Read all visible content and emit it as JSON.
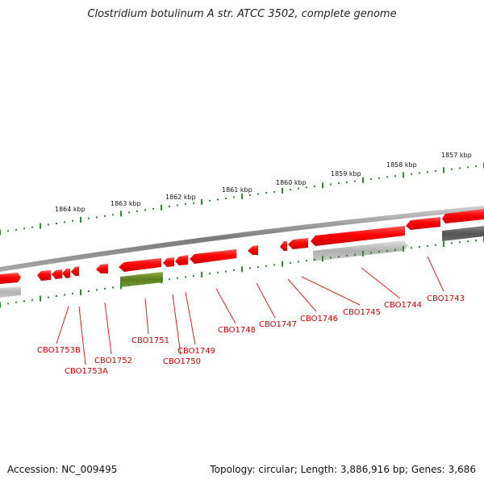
{
  "title": "Clostridium botulinum A str. ATCC 3502, complete genome",
  "footer": {
    "accession": "Accession: NC_009495",
    "topology": "Topology: circular; Length: 3,886,916 bp; Genes: 3,686"
  },
  "colors": {
    "forward_gene": "#ee1111",
    "reverse_gene_light": "#b8b8b8",
    "reverse_gene_dark": "#555555",
    "rna_gene": "#6b8e23",
    "tick": "#2e8b2e",
    "label": "#cc0000",
    "backbone": "#888888"
  },
  "kbp_ticks": [
    {
      "label": "1864 kbp",
      "value": 1864
    },
    {
      "label": "1863 kbp",
      "value": 1863
    },
    {
      "label": "1862 kbp",
      "value": 1862
    },
    {
      "label": "1861 kbp",
      "value": 1861
    },
    {
      "label": "1860 kbp",
      "value": 1860
    },
    {
      "label": "1859 kbp",
      "value": 1859
    },
    {
      "label": "1858 kbp",
      "value": 1858
    },
    {
      "label": "1857 kbp",
      "value": 1857
    }
  ],
  "gene_labels": [
    {
      "text": "CBO1753B"
    },
    {
      "text": "CBO1753A"
    },
    {
      "text": "CBO1752"
    },
    {
      "text": "CBO1751"
    },
    {
      "text": "CBO1750"
    },
    {
      "text": "CBO1749"
    },
    {
      "text": "CBO1748"
    },
    {
      "text": "CBO1747"
    },
    {
      "text": "CBO1746"
    },
    {
      "text": "CBO1745"
    },
    {
      "text": "CBO1744"
    },
    {
      "text": "CBO1743"
    }
  ]
}
